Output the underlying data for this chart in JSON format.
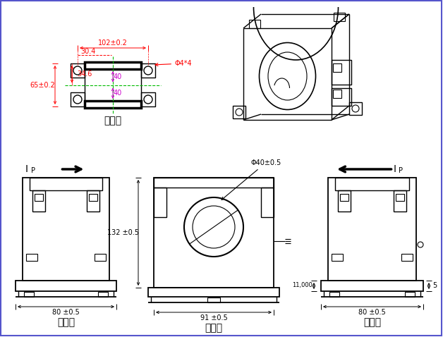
{
  "bg_color": "#ffffff",
  "line_color": "#000000",
  "red_color": "#ff0000",
  "green_color": "#00bb00",
  "magenta_color": "#cc00cc",
  "title_top_view": "俯视图",
  "title_left_view": "左视图",
  "title_main_view": "主视图",
  "title_right_view": "右视图",
  "dim_102": "102±0.2",
  "dim_65": "65±0.2",
  "dim_304": "30.4",
  "dim_346": "34.6",
  "dim_40a": "40",
  "dim_40b": "40",
  "dim_phi44": "Φ4*4",
  "dim_phi40": "Φ40±0.5",
  "dim_132": "132 ±0.5",
  "dim_91": "91 ±0.5",
  "dim_80_left": "80 ±0.5",
  "dim_80_right": "80 ±0.5",
  "dim_11": "11,000",
  "dim_5": "5",
  "border_color": "#5555cc"
}
